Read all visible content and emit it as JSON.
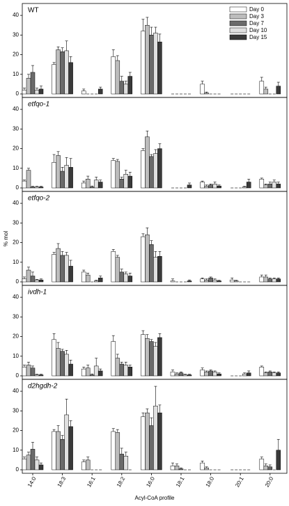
{
  "ylabel": "% mol",
  "chart_data": [
    {
      "type": "bar",
      "title": "WT",
      "title_italic": false,
      "ylim": [
        0,
        45
      ],
      "yticks": [
        0,
        10,
        20,
        30,
        40
      ],
      "series": [
        {
          "name": "Day 0",
          "color": "#ffffff",
          "values": [
            2,
            15,
            1.5,
            19,
            32,
            0,
            5,
            0,
            6.5
          ],
          "errors": [
            1,
            1,
            1,
            3.5,
            6,
            0,
            1.5,
            0,
            2
          ]
        },
        {
          "name": "Day 3",
          "color": "#bdbdbd",
          "values": [
            8,
            22.5,
            0,
            17,
            35,
            0,
            0.5,
            0,
            2.5
          ],
          "errors": [
            2,
            1.5,
            0,
            2.5,
            4,
            0,
            0.5,
            0,
            1
          ]
        },
        {
          "name": "Day 7",
          "color": "#6b6b6b",
          "values": [
            11,
            21.5,
            0,
            6.5,
            30,
            0,
            0,
            0,
            0
          ],
          "errors": [
            3.5,
            2,
            0,
            2.5,
            4,
            0,
            0,
            0,
            0
          ]
        },
        {
          "name": "Day 10",
          "color": "#e0e0e0",
          "values": [
            2,
            22,
            0,
            5,
            31,
            0,
            0,
            0,
            0
          ],
          "errors": [
            1,
            5,
            0,
            1.5,
            3,
            0,
            0,
            0,
            0
          ]
        },
        {
          "name": "Day 15",
          "color": "#3a3a3a",
          "values": [
            2.5,
            16,
            2.5,
            9,
            26.5,
            0,
            0,
            0,
            4
          ],
          "errors": [
            1.5,
            3,
            1,
            2,
            4,
            0,
            0,
            0,
            2
          ]
        }
      ]
    },
    {
      "type": "bar",
      "title": "etfqo-1",
      "title_italic": true,
      "ylim": [
        0,
        45
      ],
      "yticks": [
        0,
        10,
        20,
        30,
        40
      ],
      "series": [
        {
          "values": [
            3.5,
            13,
            2.5,
            14,
            19,
            0,
            3,
            0,
            4.5
          ],
          "errors": [
            0.5,
            4,
            1,
            1,
            1,
            0,
            0.5,
            0,
            0.5
          ]
        },
        {
          "values": [
            9,
            16.5,
            4.5,
            13.5,
            26,
            0,
            1,
            0,
            1.5
          ],
          "errors": [
            1,
            2,
            1.5,
            1,
            3,
            0,
            0.5,
            0,
            0.5
          ]
        },
        {
          "values": [
            0.5,
            8.5,
            0.5,
            4.5,
            16,
            0,
            1.5,
            0,
            2
          ],
          "errors": [
            0.3,
            2,
            0.5,
            1,
            1,
            0,
            0.5,
            0,
            1
          ]
        },
        {
          "values": [
            0.5,
            11.5,
            4,
            7,
            17.5,
            0,
            2,
            0.5,
            3
          ],
          "errors": [
            0.3,
            4,
            1.5,
            2,
            2,
            0,
            1,
            0.3,
            1
          ]
        },
        {
          "values": [
            0.5,
            10.5,
            3,
            6,
            20,
            1.5,
            1,
            3,
            2
          ],
          "errors": [
            0.3,
            4.5,
            1,
            2,
            2.5,
            1,
            0.5,
            1.5,
            1
          ]
        }
      ]
    },
    {
      "type": "bar",
      "title": "etfqo-2",
      "title_italic": true,
      "ylim": [
        0,
        45
      ],
      "yticks": [
        0,
        10,
        20,
        30,
        40
      ],
      "series": [
        {
          "values": [
            1.5,
            14,
            5,
            15.5,
            23,
            0.5,
            1.5,
            1,
            2.5
          ],
          "errors": [
            1,
            1,
            1,
            1,
            1.5,
            1,
            0.5,
            1,
            1
          ]
        },
        {
          "values": [
            6,
            17,
            3.5,
            12.5,
            24,
            0,
            1,
            0.5,
            2.5
          ],
          "errors": [
            1.5,
            2.5,
            1,
            1,
            3.5,
            0,
            0.5,
            0.3,
            1
          ]
        },
        {
          "values": [
            3,
            13.5,
            0,
            5,
            19,
            0,
            2,
            0,
            1.5
          ],
          "errors": [
            2,
            2,
            0,
            1.5,
            2,
            0,
            0.5,
            0,
            0.5
          ]
        },
        {
          "values": [
            1,
            13.5,
            0.5,
            4,
            12.5,
            0,
            1,
            0,
            1.5
          ],
          "errors": [
            0.3,
            1.5,
            0.3,
            1,
            3,
            0,
            0.5,
            0,
            0.5
          ]
        },
        {
          "values": [
            1,
            8,
            2,
            3,
            13,
            0.5,
            0.5,
            0,
            1.5
          ],
          "errors": [
            0.5,
            3,
            1,
            1.5,
            2.5,
            0.5,
            0.3,
            0,
            0.5
          ]
        }
      ]
    },
    {
      "type": "bar",
      "title": "ivdh-1",
      "title_italic": true,
      "ylim": [
        0,
        45
      ],
      "yticks": [
        0,
        10,
        20,
        30,
        40
      ],
      "series": [
        {
          "values": [
            4.5,
            18.5,
            3.5,
            17.5,
            21,
            2,
            3,
            0,
            4.5
          ],
          "errors": [
            1,
            3,
            1,
            3,
            2,
            1,
            1,
            0,
            0.5
          ]
        },
        {
          "values": [
            5.5,
            14,
            4,
            9,
            19,
            1,
            2,
            0,
            1.5
          ],
          "errors": [
            1.5,
            3,
            1.5,
            2,
            2,
            0.5,
            0.5,
            0,
            0.5
          ]
        },
        {
          "values": [
            4,
            12.5,
            0.5,
            6,
            17.5,
            1.5,
            2.5,
            0,
            2
          ],
          "errors": [
            1,
            1,
            0.5,
            1,
            1,
            0.5,
            0.5,
            0,
            0.5
          ]
        },
        {
          "values": [
            0.5,
            11,
            5,
            5.5,
            15,
            0.5,
            2,
            1,
            1.5
          ],
          "errors": [
            0.3,
            2,
            4,
            1.5,
            2,
            0.3,
            0.5,
            0.5,
            0.5
          ]
        },
        {
          "values": [
            0.5,
            6,
            2.5,
            4.5,
            19.5,
            0.5,
            1,
            1.5,
            1.5
          ],
          "errors": [
            0.3,
            2,
            1,
            1,
            2,
            0.3,
            0.5,
            1,
            0.5
          ]
        }
      ]
    },
    {
      "type": "bar",
      "title": "d2hgdh-2",
      "title_italic": true,
      "ylim": [
        0,
        45
      ],
      "yticks": [
        0,
        10,
        20,
        30,
        40
      ],
      "xlabel": "Acyl-CoA profile",
      "categories": [
        "14:0",
        "18:3",
        "16:1",
        "18:2",
        "16:0",
        "18:1",
        "18:0",
        "20:1",
        "20:0"
      ],
      "series": [
        {
          "values": [
            5.5,
            19.5,
            4,
            19.5,
            27,
            2,
            3.5,
            0,
            5.5
          ],
          "errors": [
            1,
            1,
            1,
            1.5,
            2,
            1.5,
            1,
            0,
            1
          ]
        },
        {
          "values": [
            7.5,
            19.5,
            5,
            19,
            29,
            2,
            1,
            0,
            2
          ],
          "errors": [
            1.5,
            3,
            1.5,
            1.5,
            2,
            1,
            0.5,
            0,
            1
          ]
        },
        {
          "values": [
            10.5,
            15.5,
            0,
            8,
            22.5,
            0.5,
            0,
            0,
            1.5
          ],
          "errors": [
            3.5,
            2,
            0,
            3,
            4,
            0.5,
            0,
            0,
            1
          ]
        },
        {
          "values": [
            5,
            28,
            0,
            7,
            32.5,
            0,
            0,
            0,
            0
          ],
          "errors": [
            1.5,
            8,
            0,
            2,
            10,
            0,
            0,
            0,
            0
          ]
        },
        {
          "values": [
            2.5,
            22,
            0,
            0,
            29,
            0,
            0,
            0,
            10
          ],
          "errors": [
            1,
            3,
            0,
            0,
            4,
            0,
            0,
            0,
            5.5
          ]
        }
      ]
    }
  ]
}
